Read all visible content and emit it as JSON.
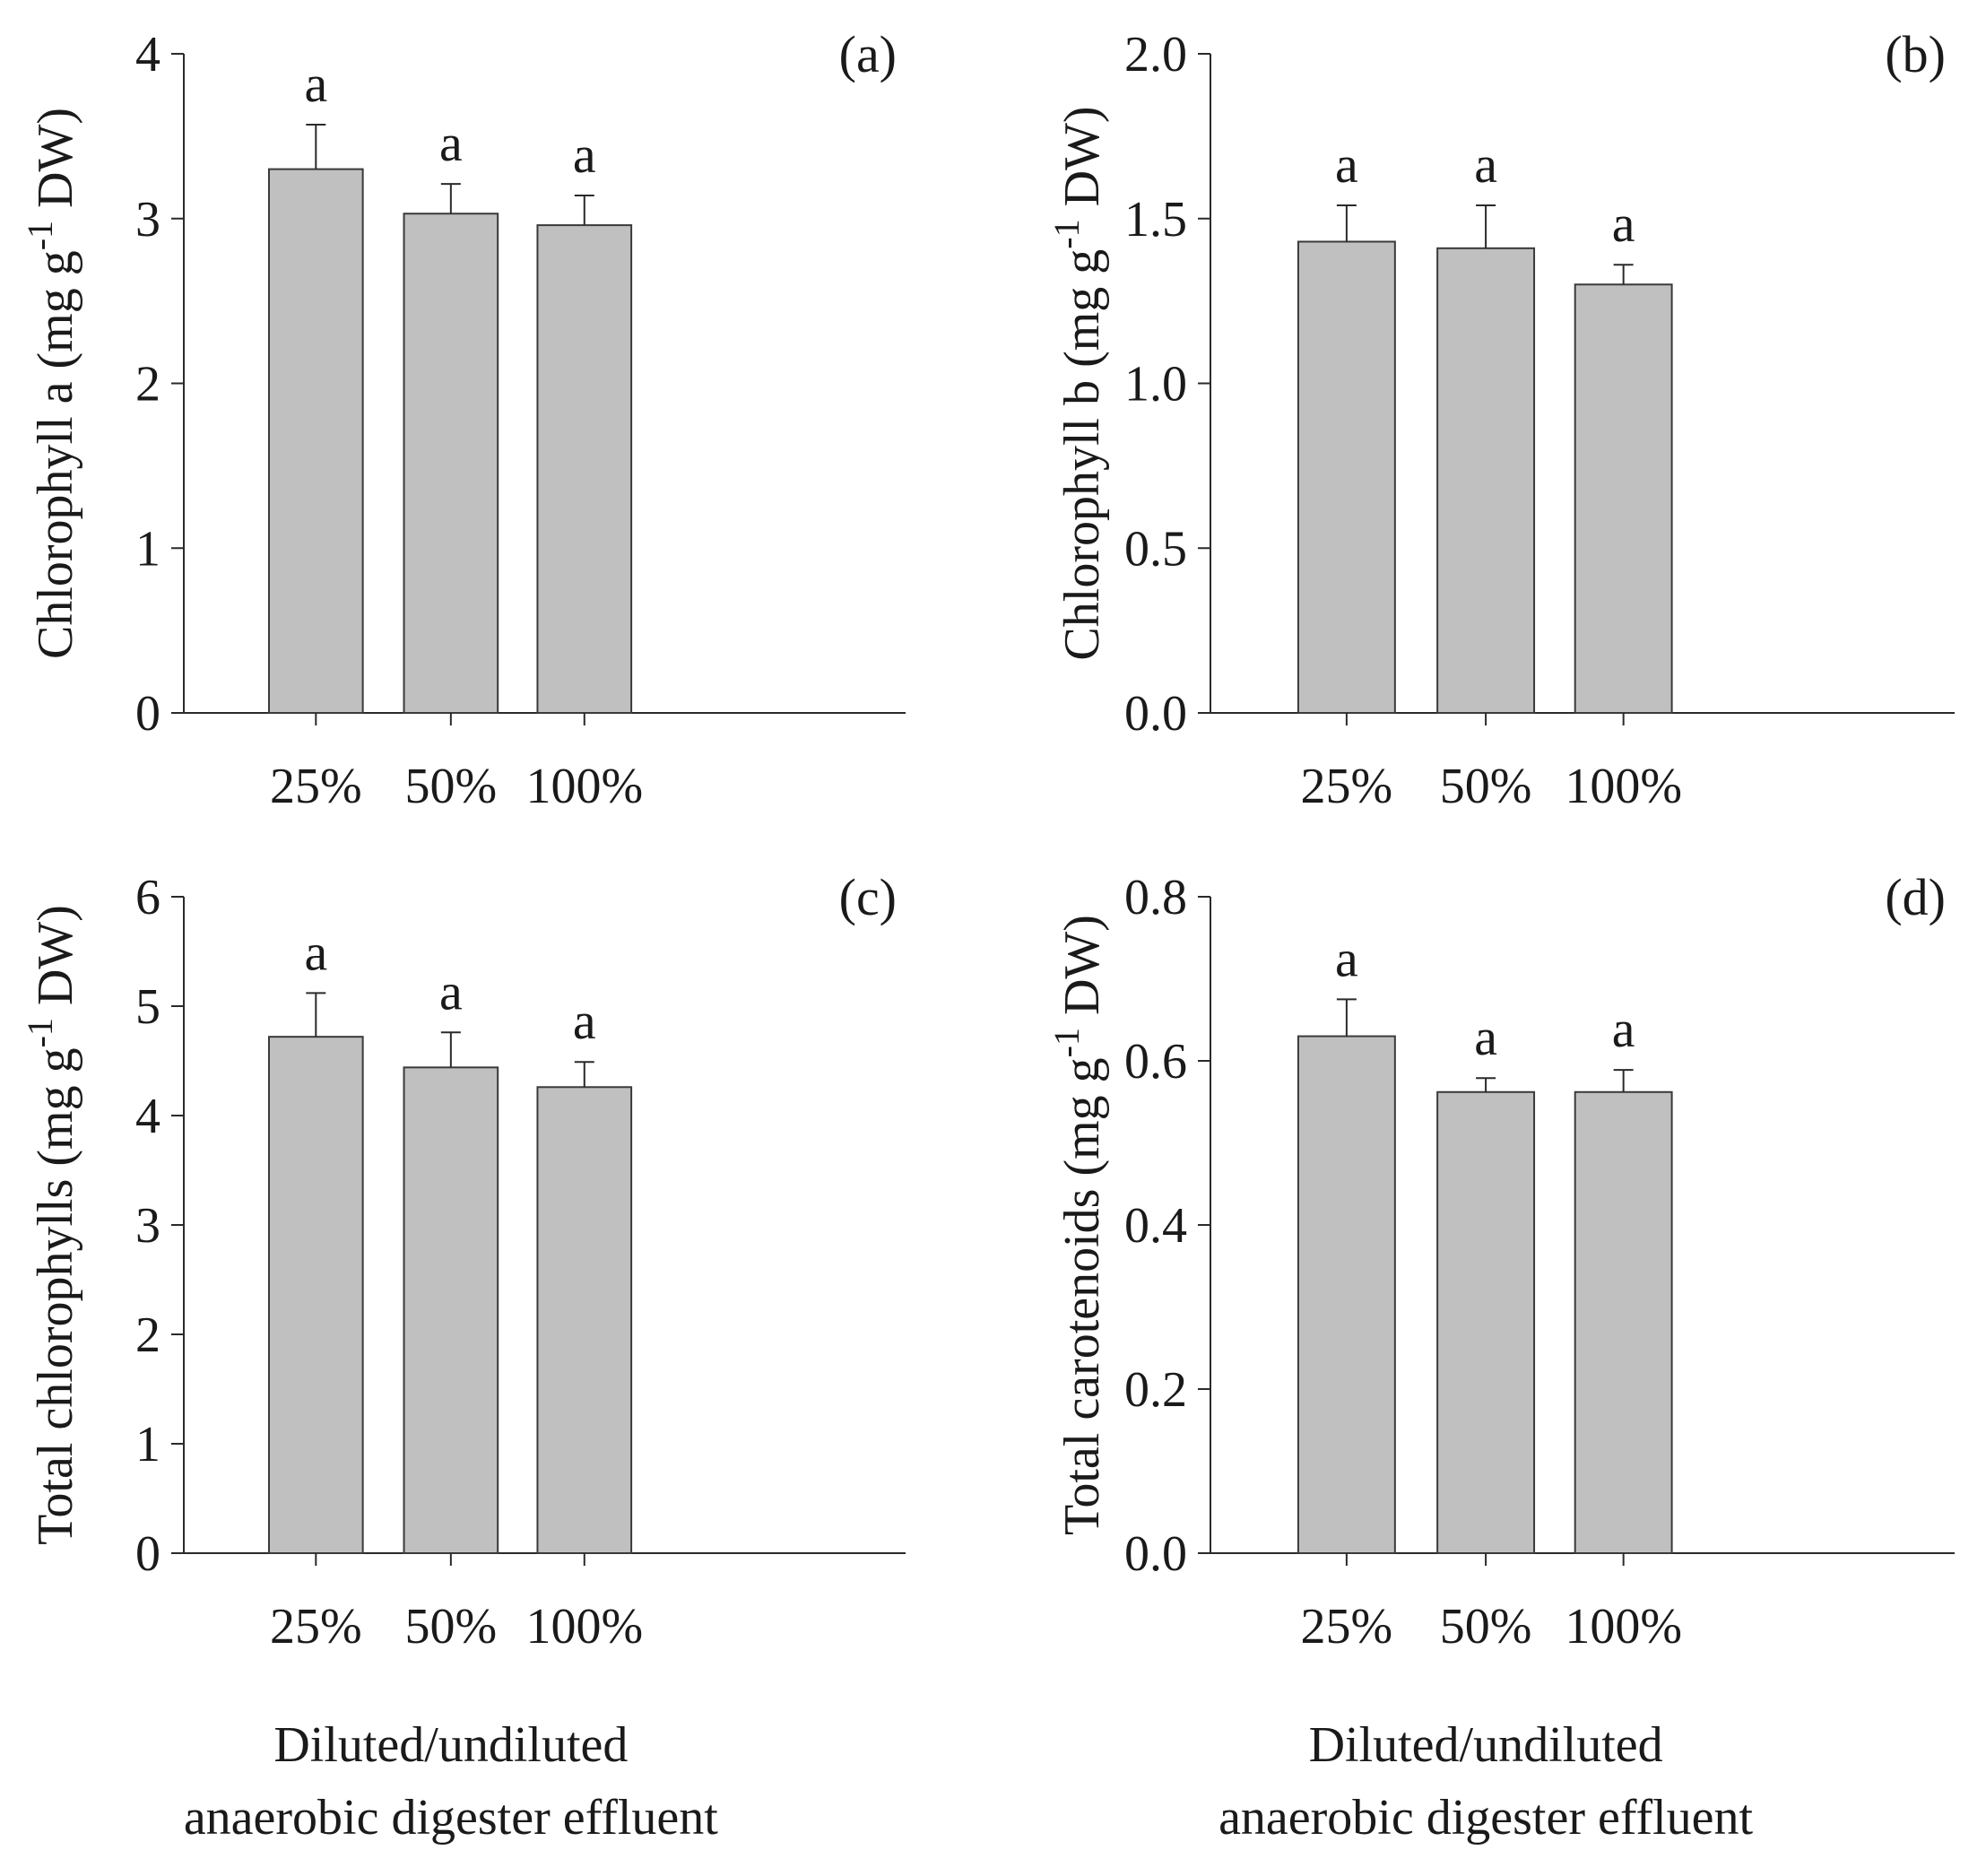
{
  "chart_data": [
    {
      "id": "a",
      "type": "bar",
      "panel_label": "(a)",
      "ylabel": "Chlorophyll a (mg g-1 DW)",
      "ylabel_parts": {
        "pre": "Chlorophyll a (mg g",
        "sup": "-1",
        "post": " DW)"
      },
      "categories": [
        "25%",
        "50%",
        "100%"
      ],
      "values": [
        3.3,
        3.03,
        2.96
      ],
      "errors": [
        0.27,
        0.18,
        0.18
      ],
      "significance": [
        "a",
        "a",
        "a"
      ],
      "ylim": [
        0,
        4
      ],
      "yticks": [
        0,
        1,
        2,
        3,
        4
      ],
      "ytick_labels": [
        "0",
        "1",
        "2",
        "3",
        "4"
      ],
      "xlabel": ""
    },
    {
      "id": "b",
      "type": "bar",
      "panel_label": "(b)",
      "ylabel": "Chlorophyll b (mg g-1 DW)",
      "ylabel_parts": {
        "pre": "Chlorophyll b (mg g",
        "sup": "-1",
        "post": " DW)"
      },
      "categories": [
        "25%",
        "50%",
        "100%"
      ],
      "values": [
        1.43,
        1.41,
        1.3
      ],
      "errors": [
        0.11,
        0.13,
        0.06
      ],
      "significance": [
        "a",
        "a",
        "a"
      ],
      "ylim": [
        0,
        2.0
      ],
      "yticks": [
        0,
        0.5,
        1.0,
        1.5,
        2.0
      ],
      "ytick_labels": [
        "0.0",
        "0.5",
        "1.0",
        "1.5",
        "2.0"
      ],
      "xlabel": ""
    },
    {
      "id": "c",
      "type": "bar",
      "panel_label": "(c)",
      "ylabel": "Total chlorophylls (mg g-1 DW)",
      "ylabel_parts": {
        "pre": "Total chlorophylls (mg g",
        "sup": "-1",
        "post": " DW)"
      },
      "categories": [
        "25%",
        "50%",
        "100%"
      ],
      "values": [
        4.72,
        4.44,
        4.26
      ],
      "errors": [
        0.4,
        0.32,
        0.23
      ],
      "significance": [
        "a",
        "a",
        "a"
      ],
      "ylim": [
        0,
        6
      ],
      "yticks": [
        0,
        1,
        2,
        3,
        4,
        5,
        6
      ],
      "ytick_labels": [
        "0",
        "1",
        "2",
        "3",
        "4",
        "5",
        "6"
      ],
      "xlabel": "Diluted/undiluted anaerobic digester effluent",
      "xlabel_lines": [
        "Diluted/undiluted",
        "anaerobic digester effluent"
      ]
    },
    {
      "id": "d",
      "type": "bar",
      "panel_label": "(d)",
      "ylabel": "Total carotenoids (mg g-1 DW)",
      "ylabel_parts": {
        "pre": "Total carotenoids (mg g",
        "sup": "-1",
        "post": " DW)"
      },
      "categories": [
        "25%",
        "50%",
        "100%"
      ],
      "values": [
        0.63,
        0.562,
        0.562
      ],
      "errors": [
        0.045,
        0.017,
        0.027
      ],
      "significance": [
        "a",
        "a",
        "a"
      ],
      "ylim": [
        0,
        0.8
      ],
      "yticks": [
        0,
        0.2,
        0.4,
        0.6,
        0.8
      ],
      "ytick_labels": [
        "0.0",
        "0.2",
        "0.4",
        "0.6",
        "0.8"
      ],
      "xlabel": "Diluted/undiluted anaerobic digester effluent",
      "xlabel_lines": [
        "Diluted/undiluted",
        "anaerobic digester effluent"
      ]
    }
  ],
  "colors": {
    "bar_fill": "#c0c0c0",
    "bar_stroke": "#3a3a3a",
    "axis": "#2a2a2a"
  }
}
